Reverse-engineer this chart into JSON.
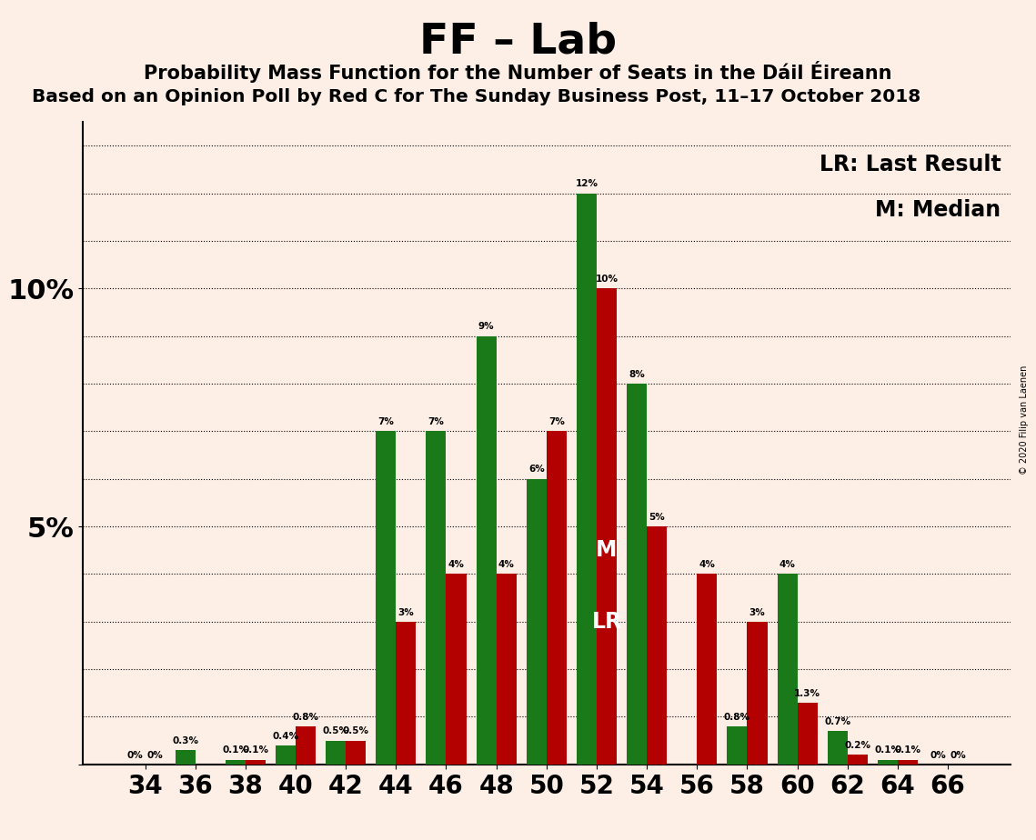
{
  "title": "FF – Lab",
  "subtitle1": "Probability Mass Function for the Number of Seats in the Dáil Éireann",
  "subtitle2": "Based on an Opinion Poll by Red C for The Sunday Business Post, 11–17 October 2018",
  "copyright": "© 2020 Filip van Laenen",
  "seats": [
    34,
    36,
    38,
    40,
    42,
    44,
    46,
    48,
    50,
    52,
    54,
    56,
    58,
    60,
    62,
    64,
    66
  ],
  "green_values": [
    0.0,
    0.3,
    0.1,
    0.4,
    0.5,
    7.0,
    7.0,
    9.0,
    6.0,
    12.0,
    8.0,
    0.0,
    0.8,
    4.0,
    0.7,
    0.1,
    0.0
  ],
  "red_values": [
    0.0,
    0.0,
    0.1,
    0.8,
    0.5,
    3.0,
    4.0,
    4.0,
    7.0,
    10.0,
    5.0,
    4.0,
    3.0,
    1.3,
    0.2,
    0.1,
    0.0
  ],
  "green_labels": [
    "0%",
    "0.3%",
    "0.1%",
    "0.4%",
    "0.5%",
    "7%",
    "7%",
    "9%",
    "6%",
    "12%",
    "8%",
    "",
    "0.8%",
    "4%",
    "0.7%",
    "0.1%",
    "0%"
  ],
  "red_labels": [
    "0%",
    "",
    "0.1%",
    "0.8%",
    "0.5%",
    "3%",
    "4%",
    "4%",
    "7%",
    "10%",
    "5%",
    "4%",
    "3%",
    "1.3%",
    "0.2%",
    "0.1%",
    "0%"
  ],
  "green_color": "#1a7a1a",
  "red_color": "#b30000",
  "background_color": "#fdeee6",
  "median_idx": 9,
  "lr_label": "LR",
  "m_label": "M",
  "ylim": [
    0,
    13.5
  ],
  "legend_lr": "LR: Last Result",
  "legend_m": "M: Median"
}
